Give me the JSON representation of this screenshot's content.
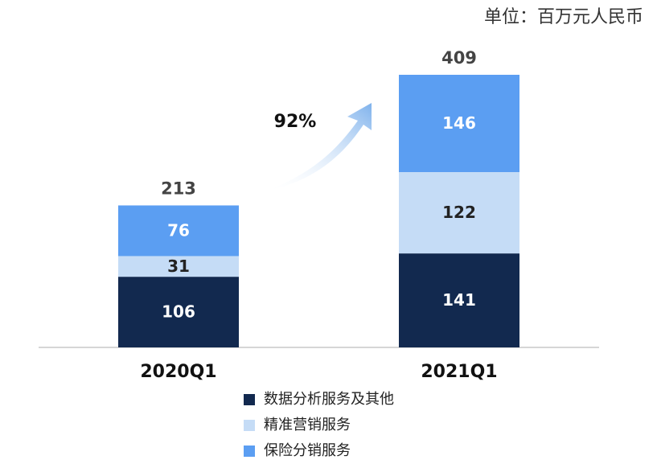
{
  "chart_data": {
    "type": "stacked-bar",
    "subtitle": "单位：百万元人民币",
    "annotation": "92%",
    "categories": [
      "2020Q1",
      "2021Q1"
    ],
    "totals": [
      213,
      409
    ],
    "series": [
      {
        "name": "数据分析服务及其他",
        "color": "#12294f",
        "values": [
          106,
          141
        ]
      },
      {
        "name": "精准营销服务",
        "color": "#c5dcf6",
        "values": [
          31,
          122
        ]
      },
      {
        "name": "保险分销服务",
        "color": "#5b9ef2",
        "values": [
          76,
          146
        ]
      }
    ]
  }
}
